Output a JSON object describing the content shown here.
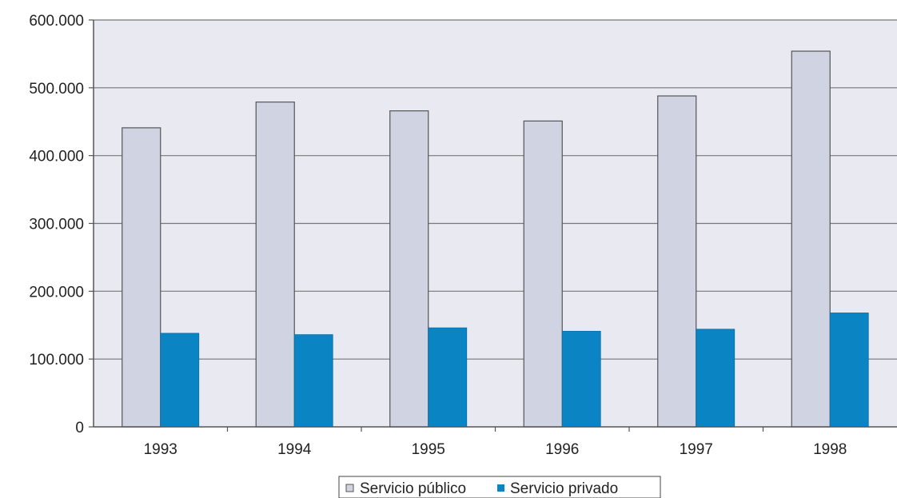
{
  "chart_data": {
    "type": "bar",
    "title": "",
    "xlabel": "",
    "ylabel": "",
    "categories": [
      "1993",
      "1994",
      "1995",
      "1996",
      "1997",
      "1998"
    ],
    "series": [
      {
        "name": "Servicio público",
        "values": [
          441000,
          479000,
          466000,
          451000,
          488000,
          554000
        ],
        "color": "#d0d4e2"
      },
      {
        "name": "Servicio privado",
        "values": [
          138000,
          136000,
          146000,
          141000,
          144000,
          168000
        ],
        "color": "#0b84c4"
      }
    ],
    "ylim": [
      0,
      600000
    ],
    "yticks": [
      0,
      100000,
      200000,
      300000,
      400000,
      500000,
      600000
    ],
    "ytick_labels": [
      "0",
      "100.000",
      "200.000",
      "300.000",
      "400.000",
      "500.000",
      "600.000"
    ],
    "grid": true,
    "plot_background": "#e8e9f1",
    "legend_position": "bottom-center"
  }
}
